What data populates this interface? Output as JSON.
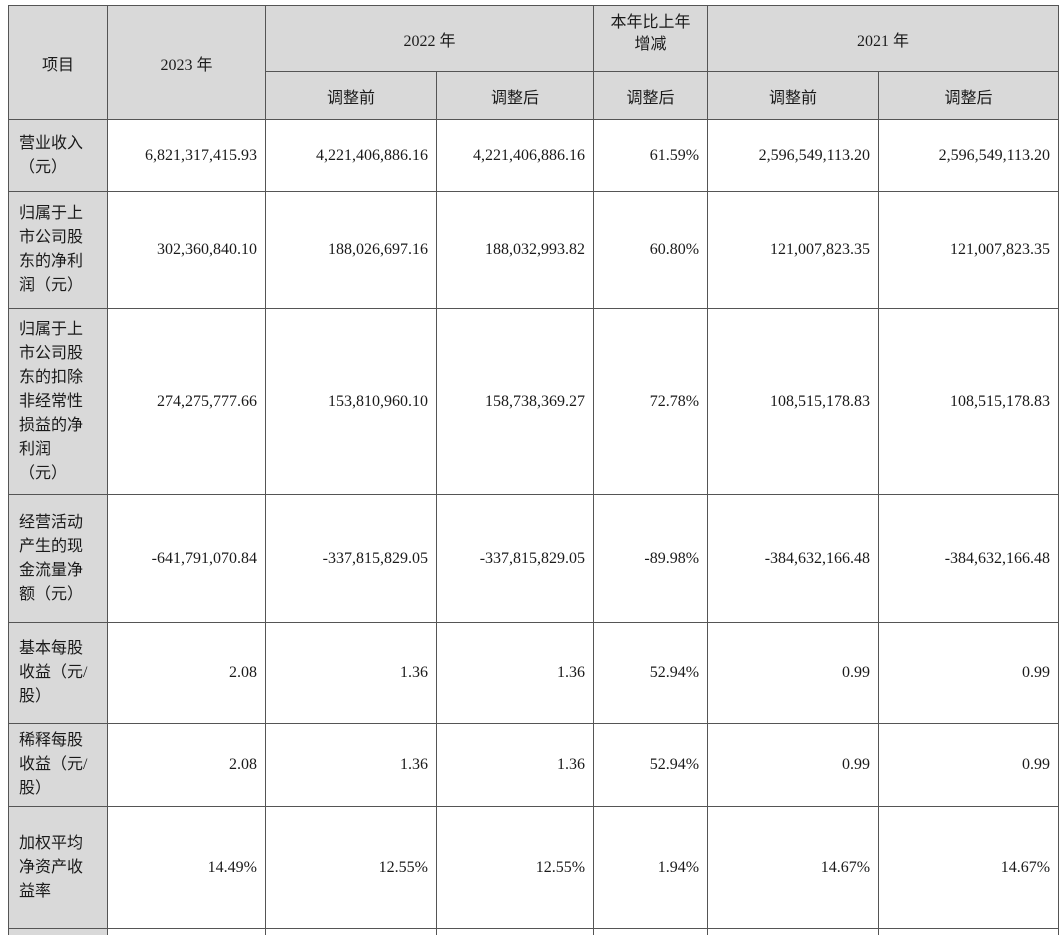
{
  "table": {
    "header": {
      "item": "项目",
      "y2023": "2023 年",
      "y2022": "2022 年",
      "change": "本年比上年\n增减",
      "y2021": "2021 年",
      "before": "调整前",
      "after": "调整后"
    },
    "rows": [
      {
        "label": "营业收入\n（元）",
        "values": [
          "6,821,317,415.93",
          "4,221,406,886.16",
          "4,221,406,886.16",
          "61.59%",
          "2,596,549,113.20",
          "2,596,549,113.20"
        ]
      },
      {
        "label": "归属于上\n市公司股\n东的净利\n润（元）",
        "values": [
          "302,360,840.10",
          "188,026,697.16",
          "188,032,993.82",
          "60.80%",
          "121,007,823.35",
          "121,007,823.35"
        ]
      },
      {
        "label": "归属于上\n市公司股\n东的扣除\n非经常性\n损益的净\n利润\n（元）",
        "values": [
          "274,275,777.66",
          "153,810,960.10",
          "158,738,369.27",
          "72.78%",
          "108,515,178.83",
          "108,515,178.83"
        ]
      },
      {
        "label": "经营活动\n产生的现\n金流量净\n额（元）",
        "values": [
          "-641,791,070.84",
          "-337,815,829.05",
          "-337,815,829.05",
          "-89.98%",
          "-384,632,166.48",
          "-384,632,166.48"
        ]
      },
      {
        "label": "基本每股\n收益（元/\n股）",
        "values": [
          "2.08",
          "1.36",
          "1.36",
          "52.94%",
          "0.99",
          "0.99"
        ]
      },
      {
        "label": "稀释每股\n收益（元/\n股）",
        "values": [
          "2.08",
          "1.36",
          "1.36",
          "52.94%",
          "0.99",
          "0.99"
        ]
      },
      {
        "label": "加权平均\n净资产收\n益率",
        "values": [
          "14.49%",
          "12.55%",
          "12.55%",
          "1.94%",
          "14.67%",
          "14.67%"
        ]
      }
    ]
  }
}
